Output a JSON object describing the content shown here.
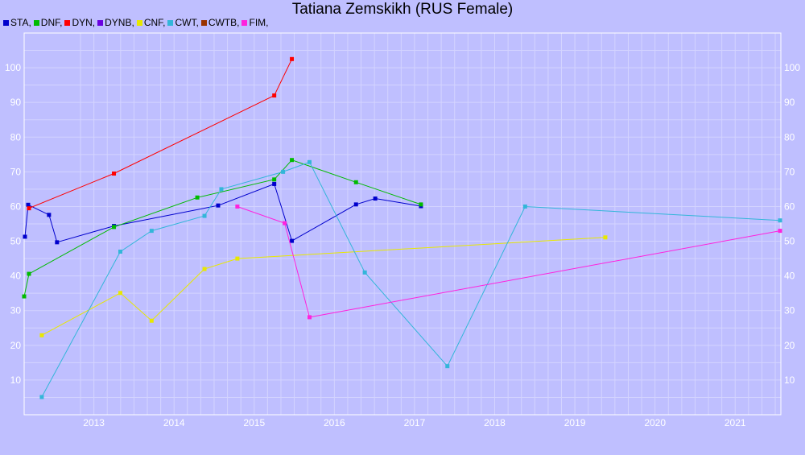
{
  "chart_data": {
    "type": "line",
    "title": "Tatiana Zemskikh (RUS Female)",
    "xlabel": "",
    "ylabel": "",
    "xlim": [
      2012.13,
      2021.57
    ],
    "ylim": [
      0,
      110
    ],
    "grid": true,
    "legend_position": "top-left",
    "x_ticks": [
      "2013",
      "2014",
      "2015",
      "2016",
      "2017",
      "2018",
      "2019",
      "2020",
      "2021"
    ],
    "y_ticks": [
      "10",
      "20",
      "30",
      "40",
      "50",
      "60",
      "70",
      "80",
      "90",
      "100"
    ],
    "series": [
      {
        "name": "STA,",
        "color": "#0000cc",
        "points": [
          [
            2012.14,
            51.3
          ],
          [
            2012.18,
            60.5
          ],
          [
            2012.44,
            57.6
          ],
          [
            2012.54,
            49.7
          ],
          [
            2013.25,
            54.4
          ],
          [
            2014.55,
            60.3
          ],
          [
            2015.25,
            66.5
          ],
          [
            2015.47,
            50.1
          ],
          [
            2016.27,
            60.6
          ],
          [
            2016.51,
            62.3
          ],
          [
            2017.08,
            60.1
          ]
        ]
      },
      {
        "name": "DNF,",
        "color": "#00bb00",
        "points": [
          [
            2012.13,
            34.1
          ],
          [
            2012.19,
            40.6
          ],
          [
            2013.25,
            54.1
          ],
          [
            2014.29,
            62.6
          ],
          [
            2015.25,
            67.8
          ],
          [
            2015.47,
            73.4
          ],
          [
            2016.27,
            67.0
          ],
          [
            2017.08,
            60.6
          ]
        ]
      },
      {
        "name": "DYN,",
        "color": "#ff0000",
        "points": [
          [
            2012.19,
            59.5
          ],
          [
            2013.25,
            69.5
          ],
          [
            2015.25,
            92.0
          ],
          [
            2015.47,
            102.5
          ]
        ]
      },
      {
        "name": "DYNB,",
        "color": "#6a00e0",
        "points": []
      },
      {
        "name": "CNF,",
        "color": "#e8e800",
        "points": [
          [
            2012.35,
            22.9
          ],
          [
            2013.33,
            35.1
          ],
          [
            2013.72,
            27.1
          ],
          [
            2014.38,
            42.0
          ],
          [
            2014.79,
            45.0
          ],
          [
            2019.38,
            51.1
          ]
        ]
      },
      {
        "name": "CWT,",
        "color": "#33b6d9",
        "points": [
          [
            2012.35,
            5.1
          ],
          [
            2013.33,
            47.0
          ],
          [
            2013.72,
            53.0
          ],
          [
            2014.38,
            57.3
          ],
          [
            2014.59,
            65.0
          ],
          [
            2015.36,
            70.0
          ],
          [
            2015.69,
            72.8
          ],
          [
            2016.38,
            41.0
          ],
          [
            2017.41,
            14.0
          ],
          [
            2018.38,
            60.0
          ],
          [
            2021.56,
            56.0
          ]
        ]
      },
      {
        "name": "CWTB,",
        "color": "#993300",
        "points": []
      },
      {
        "name": "FIM,",
        "color": "#ff22dd",
        "points": [
          [
            2014.79,
            60.0
          ],
          [
            2015.38,
            55.2
          ],
          [
            2015.69,
            28.1
          ],
          [
            2021.56,
            53.0
          ]
        ]
      }
    ]
  }
}
